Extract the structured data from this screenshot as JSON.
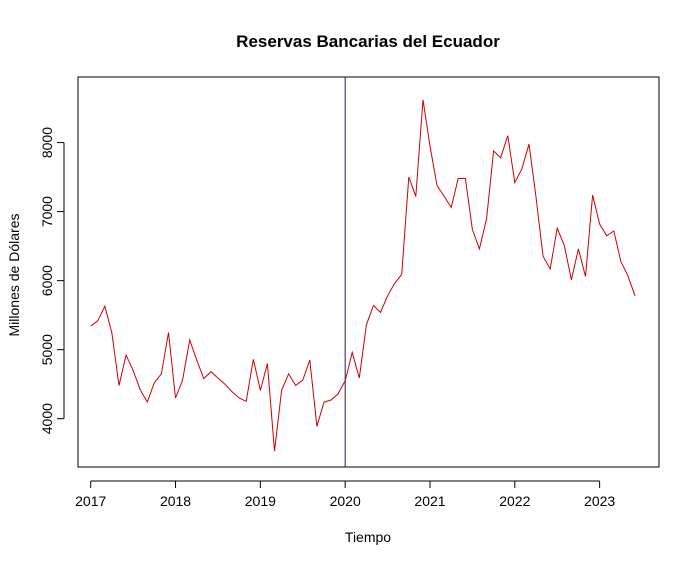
{
  "chart_data": {
    "type": "line",
    "title": "Reservas Bancarias del Ecuador",
    "xlabel": "Tiempo",
    "ylabel": "Millones de Dólares",
    "xlim": [
      2016.85,
      2023.7
    ],
    "ylim": [
      3300,
      8950
    ],
    "x_ticks": [
      2017,
      2018,
      2019,
      2020,
      2021,
      2022,
      2023
    ],
    "y_ticks": [
      4000,
      5000,
      6000,
      7000,
      8000
    ],
    "grid": false,
    "vline": 2020,
    "colors": {
      "series": "#cc0000",
      "vline": "#1a1a6e",
      "axis": "#000000"
    },
    "series": [
      {
        "x": [
          2017.0,
          2017.083,
          2017.167,
          2017.25,
          2017.333,
          2017.417,
          2017.5,
          2017.583,
          2017.667,
          2017.75,
          2017.833,
          2017.917,
          2018.0,
          2018.083,
          2018.167,
          2018.25,
          2018.333,
          2018.417,
          2018.5,
          2018.583,
          2018.667,
          2018.75,
          2018.833,
          2018.917,
          2019.0,
          2019.083,
          2019.167,
          2019.25,
          2019.333,
          2019.417,
          2019.5,
          2019.583,
          2019.667,
          2019.75,
          2019.833,
          2019.917,
          2020.0,
          2020.083,
          2020.167,
          2020.25,
          2020.333,
          2020.417,
          2020.5,
          2020.583,
          2020.667,
          2020.75,
          2020.833,
          2020.917,
          2021.0,
          2021.083,
          2021.167,
          2021.25,
          2021.333,
          2021.417,
          2021.5,
          2021.583,
          2021.667,
          2021.75,
          2021.833,
          2021.917,
          2022.0,
          2022.083,
          2022.167,
          2022.25,
          2022.333,
          2022.417,
          2022.5,
          2022.583,
          2022.667,
          2022.75,
          2022.833,
          2022.917,
          2023.0,
          2023.083,
          2023.167,
          2023.25,
          2023.333,
          2023.417
        ],
        "values": [
          5340,
          5420,
          5630,
          5240,
          4480,
          4920,
          4700,
          4420,
          4240,
          4520,
          4650,
          5250,
          4300,
          4560,
          5140,
          4850,
          4580,
          4680,
          4590,
          4500,
          4390,
          4300,
          4250,
          4860,
          4410,
          4800,
          3530,
          4410,
          4650,
          4480,
          4560,
          4850,
          3890,
          4240,
          4270,
          4360,
          4550,
          4960,
          4590,
          5360,
          5640,
          5540,
          5780,
          5960,
          6090,
          7500,
          7220,
          8620,
          7950,
          7380,
          7220,
          7060,
          7480,
          7480,
          6740,
          6460,
          6900,
          7880,
          7780,
          8100,
          7420,
          7620,
          7980,
          7210,
          6350,
          6170,
          6760,
          6510,
          6010,
          6460,
          6060,
          7240,
          6820,
          6650,
          6720,
          6280,
          6070,
          5780
        ]
      }
    ]
  }
}
